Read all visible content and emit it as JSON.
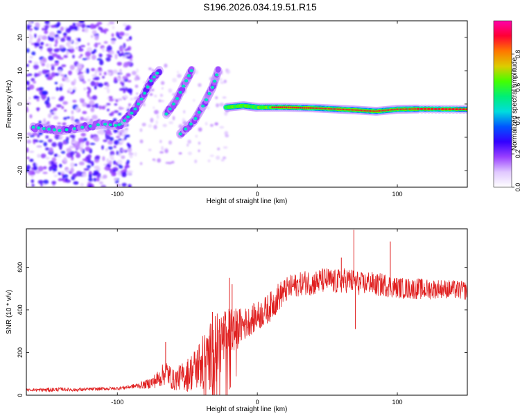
{
  "title": "S196.2026.034.19.51.R15",
  "chart_data": [
    {
      "type": "heatmap",
      "xlabel": "Height of straight line (km)",
      "ylabel": "Frequency (Hz)",
      "xlim": [
        -165,
        150
      ],
      "ylim": [
        -25,
        25
      ],
      "xticks": [
        -100,
        0,
        100
      ],
      "xtick_labels": [
        "-100",
        "0",
        "100"
      ],
      "yticks": [
        -20,
        -10,
        0,
        10,
        20
      ],
      "ytick_labels": [
        "-20",
        "-10",
        "0",
        "10",
        "20"
      ],
      "colorbar": {
        "label": "Normalized spectral amplitude",
        "range": [
          0,
          1
        ],
        "ticks": [
          0,
          0.2,
          0.4,
          0.6,
          0.8
        ],
        "tick_labels": [
          "0.0",
          "0.2",
          "0.4",
          "0.6",
          "0.8"
        ],
        "colors": [
          "#ffffff",
          "#e0c8ff",
          "#9a40ff",
          "#3300ff",
          "#0055ff",
          "#00dddd",
          "#00ee77",
          "#44ff00",
          "#ddcc00",
          "#ff7700",
          "#ff0033",
          "#ff00aa"
        ]
      },
      "features": [
        {
          "name": "noise-region",
          "x_range": [
            -165,
            -90
          ],
          "f_range": [
            -25,
            25
          ],
          "amplitude": 0.1
        },
        {
          "name": "early-trace",
          "points": [
            [
              -160,
              -7
            ],
            [
              -150,
              -7.5
            ],
            [
              -140,
              -8
            ],
            [
              -125,
              -7
            ],
            [
              -110,
              -6
            ],
            [
              -100,
              -6.5
            ],
            [
              -95,
              -5.5
            ]
          ],
          "amplitude": 0.3
        },
        {
          "name": "rising-trace-1",
          "points": [
            [
              -95,
              -5
            ],
            [
              -88,
              -2
            ],
            [
              -82,
              2
            ],
            [
              -76,
              7
            ],
            [
              -70,
              10
            ]
          ],
          "amplitude": 0.35
        },
        {
          "name": "rising-trace-2",
          "points": [
            [
              -65,
              -3
            ],
            [
              -58,
              1
            ],
            [
              -52,
              6
            ],
            [
              -47,
              10
            ]
          ],
          "amplitude": 0.3
        },
        {
          "name": "rising-trace-3",
          "points": [
            [
              -55,
              -9
            ],
            [
              -45,
              -5
            ],
            [
              -38,
              0
            ],
            [
              -32,
              5
            ],
            [
              -28,
              10
            ]
          ],
          "amplitude": 0.28
        },
        {
          "name": "main-trace",
          "points": [
            [
              -22,
              -1
            ],
            [
              -10,
              -0.5
            ],
            [
              0,
              -1
            ],
            [
              20,
              -1
            ],
            [
              40,
              -1.2
            ],
            [
              55,
              -1.5
            ],
            [
              70,
              -1.8
            ],
            [
              85,
              -2.2
            ],
            [
              100,
              -1.6
            ],
            [
              115,
              -1.5
            ],
            [
              150,
              -1.6
            ]
          ],
          "amplitude": 0.85
        }
      ]
    },
    {
      "type": "line",
      "xlabel": "Height of straight line (km)",
      "ylabel": "SNR (10 * v/v)",
      "xlim": [
        -165,
        150
      ],
      "ylim": [
        0,
        780
      ],
      "xticks": [
        -100,
        0,
        100
      ],
      "xtick_labels": [
        "-100",
        "0",
        "100"
      ],
      "yticks": [
        0,
        200,
        400,
        600
      ],
      "ytick_labels": [
        "0",
        "200",
        "400",
        "600"
      ],
      "series": [
        {
          "name": "SNR",
          "color": "#e02020",
          "x": [
            -165,
            -150,
            -140,
            -130,
            -120,
            -110,
            -100,
            -90,
            -85,
            -80,
            -75,
            -70,
            -65,
            -60,
            -55,
            -50,
            -45,
            -40,
            -35,
            -30,
            -25,
            -20,
            -15,
            -10,
            -5,
            0,
            5,
            10,
            15,
            20,
            25,
            30,
            35,
            40,
            45,
            50,
            55,
            60,
            65,
            70,
            75,
            80,
            85,
            90,
            95,
            100,
            105,
            110,
            115,
            120,
            130,
            140,
            150
          ],
          "y": [
            25,
            25,
            28,
            25,
            28,
            30,
            32,
            40,
            45,
            50,
            60,
            80,
            110,
            70,
            85,
            95,
            120,
            150,
            170,
            220,
            260,
            290,
            310,
            330,
            350,
            370,
            390,
            420,
            460,
            490,
            510,
            520,
            530,
            525,
            535,
            540,
            530,
            535,
            540,
            530,
            520,
            530,
            515,
            520,
            510,
            505,
            500,
            500,
            500,
            495,
            500,
            495,
            490
          ],
          "amplitude": [
            5,
            10,
            8,
            8,
            8,
            8,
            8,
            10,
            15,
            20,
            30,
            45,
            60,
            50,
            60,
            80,
            100,
            130,
            150,
            180,
            150,
            120,
            100,
            80,
            70,
            70,
            70,
            70,
            70,
            60,
            60,
            55,
            60,
            60,
            60,
            60,
            60,
            60,
            60,
            60,
            55,
            55,
            55,
            55,
            55,
            50,
            50,
            50,
            50,
            50,
            45,
            45,
            45
          ],
          "spikes": [
            [
              -65.5,
              250
            ],
            [
              -20,
              550
            ],
            [
              -18,
              520
            ],
            [
              -32,
              390
            ],
            [
              60,
              645
            ],
            [
              69,
              775
            ],
            [
              70,
              310
            ],
            [
              95,
              720
            ]
          ]
        }
      ]
    }
  ]
}
